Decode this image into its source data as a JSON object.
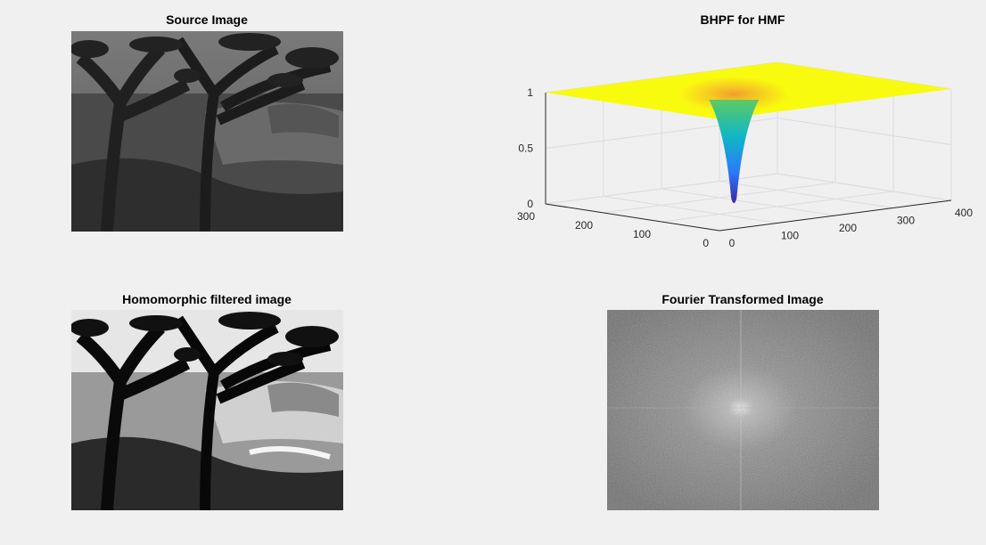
{
  "figure": {
    "panels": [
      {
        "title": "Source Image",
        "content": "grayscale painting of trees by water (low contrast)"
      },
      {
        "title": "BHPF for HMF"
      },
      {
        "title": "Homomorphic filtered image",
        "content": "high-contrast grayscale painting of trees by water"
      },
      {
        "title": "Fourier Transformed Image",
        "content": "log-magnitude spectrum with bright center"
      }
    ]
  },
  "chart_data": {
    "type": "surface",
    "title": "BHPF for HMF",
    "x_ticks": [
      "0",
      "100",
      "200",
      "300",
      "400"
    ],
    "y_ticks": [
      "0",
      "100",
      "200",
      "300"
    ],
    "z_ticks": [
      "0",
      "0.5",
      "1"
    ],
    "xlim": [
      0,
      400
    ],
    "ylim": [
      0,
      300
    ],
    "zlim": [
      0,
      1
    ],
    "surface": {
      "center": [
        165,
        140
      ],
      "min_value": 0.0,
      "max_value": 1.0,
      "colormap": [
        "#3e26a8",
        "#2a7af8",
        "#10b8c6",
        "#5ec962",
        "#f9fb0e"
      ]
    },
    "grid": true
  },
  "colors": {
    "background": "#f0f0f0",
    "plateau": "#f9fb0e"
  }
}
